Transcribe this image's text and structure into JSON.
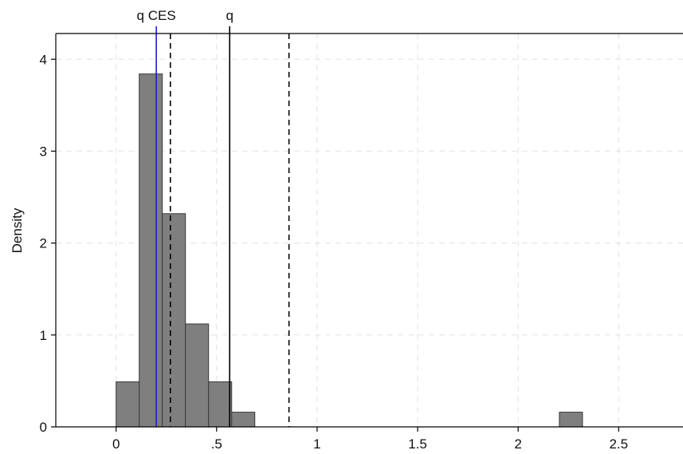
{
  "chart_data": {
    "type": "bar",
    "title": "",
    "xlabel": "",
    "ylabel": "Density",
    "xlim": [
      -0.3,
      2.82
    ],
    "ylim": [
      0,
      4.28
    ],
    "x_ticks": [
      0,
      0.5,
      1,
      1.5,
      2,
      2.5
    ],
    "x_tick_labels": [
      "0",
      ".5",
      "1",
      "1.5",
      "2",
      "2.5"
    ],
    "y_ticks": [
      0,
      1,
      2,
      3,
      4
    ],
    "y_tick_labels": [
      "0",
      "1",
      "2",
      "3",
      "4"
    ],
    "grid": true,
    "bars": [
      {
        "x0": 0.0,
        "x1": 0.115,
        "value": 0.49
      },
      {
        "x0": 0.115,
        "x1": 0.23,
        "value": 3.84
      },
      {
        "x0": 0.23,
        "x1": 0.345,
        "value": 2.32
      },
      {
        "x0": 0.345,
        "x1": 0.46,
        "value": 1.12
      },
      {
        "x0": 0.46,
        "x1": 0.575,
        "value": 0.49
      },
      {
        "x0": 0.575,
        "x1": 0.69,
        "value": 0.16
      },
      {
        "x0": 2.205,
        "x1": 2.32,
        "value": 0.16
      }
    ],
    "reference_lines": [
      {
        "x": 0.2,
        "style": "solid",
        "color": "#1f1fbf",
        "label": "q CES"
      },
      {
        "x": 0.27,
        "style": "dashed",
        "color": "#000000",
        "label": ""
      },
      {
        "x": 0.565,
        "style": "solid",
        "color": "#000000",
        "label": "q"
      },
      {
        "x": 0.86,
        "style": "dashed",
        "color": "#000000",
        "label": ""
      }
    ],
    "bar_color": "#7f7f7f",
    "grid_color": "#e6e6e6"
  }
}
